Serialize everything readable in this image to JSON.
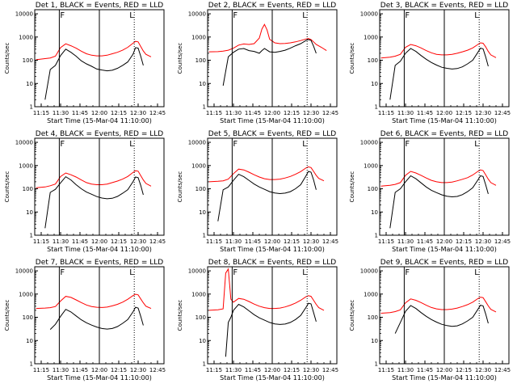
{
  "figure": {
    "background": "#ffffff",
    "series_colors": {
      "events": "#000000",
      "lld": "#ff0000"
    }
  },
  "chart_data": [
    {
      "type": "line",
      "title": "Det 1, BLACK = Events, RED = LLD",
      "xlabel": "Start Time (15-Mar-04 11:10:00)",
      "ylabel": "Counts/sec",
      "x_ticks": [
        "11:15",
        "11:30",
        "11:45",
        "12:00",
        "12:15",
        "12:30",
        "12:45"
      ],
      "y_ticks": [
        "1",
        "10",
        "100",
        "1000",
        "10000"
      ],
      "ylim": [
        1,
        15000
      ],
      "y_scale": "log",
      "grid": false,
      "x": [
        "11:11",
        "11:18",
        "11:22",
        "11:26",
        "11:30",
        "11:34",
        "11:38",
        "11:42",
        "11:46",
        "11:50",
        "11:54",
        "11:58",
        "12:02",
        "12:06",
        "12:10",
        "12:14",
        "12:18",
        "12:22",
        "12:26",
        "12:28",
        "12:30",
        "12:32",
        "12:34",
        "12:36",
        "12:40"
      ],
      "series": [
        {
          "values": [
            105,
            118,
            125,
            150,
            350,
            510,
            420,
            330,
            245,
            190,
            165,
            155,
            155,
            165,
            190,
            220,
            270,
            360,
            540,
            650,
            620,
            390,
            250,
            180,
            140
          ]
        },
        {
          "values": [
            null,
            2,
            40,
            60,
            160,
            300,
            220,
            150,
            95,
            70,
            55,
            42,
            38,
            35,
            37,
            45,
            60,
            85,
            180,
            350,
            330,
            150,
            60,
            null,
            null
          ]
        }
      ],
      "markers": {
        "solid": [
          "11:29",
          "12:00"
        ],
        "dotted": [
          "12:27"
        ],
        "labels": [
          "F",
          "L"
        ]
      }
    },
    {
      "type": "line",
      "title": "Det 2, BLACK = Events, RED = LLD",
      "xlabel": "Start Time (15-Mar-04 11:10:00)",
      "ylabel": "Counts/sec",
      "x_ticks": [
        "11:15",
        "11:30",
        "11:45",
        "12:00",
        "12:15",
        "12:30",
        "12:45"
      ],
      "y_ticks": [
        "1",
        "10",
        "100",
        "1000",
        "10000"
      ],
      "ylim": [
        1,
        15000
      ],
      "y_scale": "log",
      "grid": false,
      "x": [
        "11:11",
        "11:18",
        "11:22",
        "11:26",
        "11:30",
        "11:34",
        "11:38",
        "11:42",
        "11:46",
        "11:50",
        "11:52",
        "11:54",
        "11:56",
        "11:58",
        "12:02",
        "12:06",
        "12:10",
        "12:14",
        "12:18",
        "12:22",
        "12:26",
        "12:28",
        "12:30",
        "12:32",
        "12:34",
        "12:38",
        "12:42"
      ],
      "series": [
        {
          "values": [
            230,
            235,
            245,
            270,
            330,
            450,
            500,
            480,
            520,
            900,
            2200,
            3500,
            2000,
            800,
            560,
            520,
            530,
            560,
            620,
            700,
            820,
            860,
            780,
            620,
            480,
            360,
            260
          ]
        },
        {
          "values": [
            null,
            null,
            8,
            140,
            220,
            300,
            320,
            260,
            240,
            200,
            260,
            320,
            270,
            230,
            220,
            240,
            270,
            330,
            420,
            520,
            700,
            780,
            720,
            400,
            200,
            null,
            null
          ]
        }
      ],
      "markers": {
        "solid": [
          "11:29",
          "12:00"
        ],
        "dotted": [
          "12:27"
        ],
        "labels": [
          "F",
          "L"
        ]
      }
    },
    {
      "type": "line",
      "title": "Det 3, BLACK = Events, RED = LLD",
      "xlabel": "Start Time (15-Mar-04 11:10:00)",
      "ylabel": "Counts/sec",
      "x_ticks": [
        "11:15",
        "11:30",
        "11:45",
        "12:00",
        "12:15",
        "12:30",
        "12:45"
      ],
      "y_ticks": [
        "1",
        "10",
        "100",
        "1000",
        "10000"
      ],
      "ylim": [
        1,
        15000
      ],
      "y_scale": "log",
      "grid": false,
      "x": [
        "11:11",
        "11:18",
        "11:22",
        "11:26",
        "11:30",
        "11:34",
        "11:38",
        "11:42",
        "11:46",
        "11:50",
        "11:54",
        "11:58",
        "12:02",
        "12:06",
        "12:10",
        "12:14",
        "12:18",
        "12:22",
        "12:26",
        "12:28",
        "12:30",
        "12:32",
        "12:34",
        "12:36",
        "12:40"
      ],
      "series": [
        {
          "values": [
            125,
            135,
            150,
            180,
            360,
            480,
            420,
            340,
            260,
            210,
            180,
            170,
            170,
            180,
            200,
            230,
            270,
            340,
            480,
            560,
            540,
            380,
            240,
            170,
            130
          ]
        },
        {
          "values": [
            null,
            2,
            60,
            90,
            200,
            320,
            240,
            160,
            110,
            80,
            62,
            50,
            45,
            42,
            44,
            52,
            70,
            100,
            220,
            330,
            310,
            140,
            55,
            null,
            null
          ]
        }
      ],
      "markers": {
        "solid": [
          "11:29",
          "12:00"
        ],
        "dotted": [
          "12:27"
        ],
        "labels": [
          "F",
          "L"
        ]
      }
    },
    {
      "type": "line",
      "title": "Det 4, BLACK = Events, RED = LLD",
      "xlabel": "Start Time (15-Mar-04 11:10:00)",
      "ylabel": "Counts/sec",
      "x_ticks": [
        "11:15",
        "11:30",
        "11:45",
        "12:00",
        "12:15",
        "12:30",
        "12:45"
      ],
      "y_ticks": [
        "1",
        "10",
        "100",
        "1000",
        "10000"
      ],
      "ylim": [
        1,
        15000
      ],
      "y_scale": "log",
      "grid": false,
      "x": [
        "11:11",
        "11:18",
        "11:22",
        "11:26",
        "11:30",
        "11:34",
        "11:38",
        "11:42",
        "11:46",
        "11:50",
        "11:54",
        "11:58",
        "12:02",
        "12:06",
        "12:10",
        "12:14",
        "12:18",
        "12:22",
        "12:26",
        "12:28",
        "12:30",
        "12:32",
        "12:34",
        "12:36",
        "12:40"
      ],
      "series": [
        {
          "values": [
            110,
            120,
            135,
            160,
            340,
            480,
            400,
            320,
            240,
            185,
            160,
            150,
            150,
            160,
            185,
            215,
            260,
            340,
            500,
            600,
            570,
            370,
            240,
            170,
            130
          ]
        },
        {
          "values": [
            null,
            2,
            70,
            95,
            180,
            330,
            240,
            150,
            100,
            72,
            58,
            46,
            40,
            37,
            39,
            47,
            64,
            92,
            200,
            320,
            300,
            140,
            55,
            null,
            null
          ]
        }
      ],
      "markers": {
        "solid": [
          "11:29",
          "12:00"
        ],
        "dotted": [
          "12:27"
        ],
        "labels": [
          "F",
          "L"
        ]
      }
    },
    {
      "type": "line",
      "title": "Det 5, BLACK = Events, RED = LLD",
      "xlabel": "Start Time (15-Mar-04 11:10:00)",
      "ylabel": "Counts/sec",
      "x_ticks": [
        "11:15",
        "11:30",
        "11:45",
        "12:00",
        "12:15",
        "12:30",
        "12:45"
      ],
      "y_ticks": [
        "1",
        "10",
        "100",
        "1000",
        "10000"
      ],
      "ylim": [
        1,
        15000
      ],
      "y_scale": "log",
      "grid": false,
      "x": [
        "11:11",
        "11:18",
        "11:22",
        "11:26",
        "11:30",
        "11:34",
        "11:38",
        "11:42",
        "11:46",
        "11:50",
        "11:54",
        "11:58",
        "12:02",
        "12:06",
        "12:10",
        "12:14",
        "12:18",
        "12:22",
        "12:26",
        "12:28",
        "12:30",
        "12:32",
        "12:34",
        "12:36",
        "12:40"
      ],
      "series": [
        {
          "values": [
            200,
            210,
            220,
            260,
            450,
            700,
            650,
            520,
            400,
            320,
            270,
            250,
            250,
            260,
            290,
            340,
            420,
            550,
            780,
            880,
            820,
            560,
            380,
            280,
            220
          ]
        },
        {
          "values": [
            null,
            4,
            90,
            120,
            230,
            420,
            330,
            230,
            160,
            120,
            95,
            75,
            66,
            62,
            65,
            75,
            100,
            150,
            350,
            560,
            520,
            240,
            90,
            null,
            null
          ]
        }
      ],
      "markers": {
        "solid": [
          "11:29",
          "12:00"
        ],
        "dotted": [
          "12:27"
        ],
        "labels": [
          "F",
          "L"
        ]
      }
    },
    {
      "type": "line",
      "title": "Det 6, BLACK = Events, RED = LLD",
      "xlabel": "Start Time (15-Mar-04 11:10:00)",
      "ylabel": "Counts/sec",
      "x_ticks": [
        "11:15",
        "11:30",
        "11:45",
        "12:00",
        "12:15",
        "12:30",
        "12:45"
      ],
      "y_ticks": [
        "1",
        "10",
        "100",
        "1000",
        "10000"
      ],
      "ylim": [
        1,
        15000
      ],
      "y_scale": "log",
      "grid": false,
      "x": [
        "11:11",
        "11:18",
        "11:22",
        "11:26",
        "11:30",
        "11:34",
        "11:38",
        "11:42",
        "11:46",
        "11:50",
        "11:54",
        "11:58",
        "12:02",
        "12:06",
        "12:10",
        "12:14",
        "12:18",
        "12:22",
        "12:26",
        "12:28",
        "12:30",
        "12:32",
        "12:34",
        "12:36",
        "12:40"
      ],
      "series": [
        {
          "values": [
            130,
            140,
            155,
            185,
            380,
            560,
            480,
            380,
            290,
            230,
            200,
            185,
            185,
            195,
            220,
            255,
            300,
            390,
            560,
            650,
            610,
            400,
            260,
            185,
            140
          ]
        },
        {
          "values": [
            null,
            2,
            70,
            100,
            200,
            360,
            270,
            180,
            120,
            86,
            68,
            55,
            48,
            45,
            47,
            56,
            75,
            110,
            240,
            360,
            340,
            150,
            60,
            null,
            null
          ]
        }
      ],
      "markers": {
        "solid": [
          "11:29",
          "12:00"
        ],
        "dotted": [
          "12:27"
        ],
        "labels": [
          "F",
          "L"
        ]
      }
    },
    {
      "type": "line",
      "title": "Det 7, BLACK = Events, RED = LLD",
      "xlabel": "Start Time (15-Mar-04 11:10:00)",
      "ylabel": "Counts/sec",
      "x_ticks": [
        "11:15",
        "11:30",
        "11:45",
        "12:00",
        "12:15",
        "12:30",
        "12:45"
      ],
      "y_ticks": [
        "1",
        "10",
        "100",
        "1000",
        "10000"
      ],
      "ylim": [
        1,
        15000
      ],
      "y_scale": "log",
      "grid": false,
      "x": [
        "11:11",
        "11:18",
        "11:22",
        "11:26",
        "11:30",
        "11:34",
        "11:38",
        "11:42",
        "11:46",
        "11:50",
        "11:54",
        "11:58",
        "12:02",
        "12:06",
        "12:10",
        "12:14",
        "12:18",
        "12:22",
        "12:26",
        "12:28",
        "12:30",
        "12:32",
        "12:34",
        "12:36",
        "12:40"
      ],
      "series": [
        {
          "values": [
            240,
            250,
            260,
            290,
            500,
            800,
            720,
            560,
            430,
            340,
            290,
            270,
            265,
            275,
            310,
            360,
            450,
            600,
            860,
            980,
            920,
            620,
            420,
            300,
            240
          ]
        },
        {
          "values": [
            null,
            null,
            30,
            50,
            110,
            220,
            170,
            115,
            78,
            58,
            46,
            38,
            33,
            31,
            33,
            40,
            55,
            80,
            170,
            270,
            250,
            110,
            45,
            null,
            null
          ]
        }
      ],
      "markers": {
        "solid": [
          "11:29",
          "12:00"
        ],
        "dotted": [
          "12:27"
        ],
        "labels": [
          "F",
          "L"
        ]
      }
    },
    {
      "type": "line",
      "title": "Det 8, BLACK = Events, RED = LLD",
      "xlabel": "Start Time (15-Mar-04 11:10:00)",
      "ylabel": "Counts/sec",
      "x_ticks": [
        "11:15",
        "11:30",
        "11:45",
        "12:00",
        "12:15",
        "12:30",
        "12:45"
      ],
      "y_ticks": [
        "1",
        "10",
        "100",
        "1000",
        "10000"
      ],
      "ylim": [
        1,
        15000
      ],
      "y_scale": "log",
      "grid": false,
      "x": [
        "11:11",
        "11:18",
        "11:22",
        "11:24",
        "11:26",
        "11:28",
        "11:30",
        "11:34",
        "11:38",
        "11:42",
        "11:46",
        "11:50",
        "11:54",
        "11:58",
        "12:02",
        "12:06",
        "12:10",
        "12:14",
        "12:18",
        "12:22",
        "12:26",
        "12:28",
        "12:30",
        "12:32",
        "12:34",
        "12:36",
        "12:40"
      ],
      "series": [
        {
          "values": [
            200,
            210,
            230,
            8000,
            12000,
            600,
            450,
            650,
            600,
            480,
            370,
            300,
            260,
            240,
            240,
            250,
            280,
            330,
            410,
            540,
            760,
            850,
            800,
            540,
            360,
            260,
            200
          ]
        },
        {
          "values": [
            null,
            null,
            null,
            2,
            60,
            100,
            200,
            360,
            280,
            190,
            130,
            95,
            75,
            60,
            52,
            49,
            51,
            60,
            80,
            120,
            260,
            400,
            380,
            160,
            65,
            null,
            null
          ]
        }
      ],
      "markers": {
        "solid": [
          "11:29",
          "12:00"
        ],
        "dotted": [
          "12:27"
        ],
        "labels": [
          "F",
          "L"
        ]
      }
    },
    {
      "type": "line",
      "title": "Det 9, BLACK = Events, RED = LLD",
      "xlabel": "Start Time (15-Mar-04 11:10:00)",
      "ylabel": "Counts/sec",
      "x_ticks": [
        "11:15",
        "11:30",
        "11:45",
        "12:00",
        "12:15",
        "12:30",
        "12:45"
      ],
      "y_ticks": [
        "1",
        "10",
        "100",
        "1000",
        "10000"
      ],
      "ylim": [
        1,
        15000
      ],
      "y_scale": "log",
      "grid": false,
      "x": [
        "11:11",
        "11:18",
        "11:22",
        "11:26",
        "11:30",
        "11:34",
        "11:38",
        "11:42",
        "11:46",
        "11:50",
        "11:54",
        "11:58",
        "12:02",
        "12:06",
        "12:10",
        "12:14",
        "12:18",
        "12:22",
        "12:26",
        "12:28",
        "12:30",
        "12:32",
        "12:34",
        "12:36",
        "12:40"
      ],
      "series": [
        {
          "values": [
            150,
            160,
            175,
            210,
            420,
            620,
            540,
            430,
            330,
            265,
            230,
            215,
            215,
            225,
            250,
            290,
            350,
            450,
            640,
            740,
            700,
            470,
            310,
            220,
            170
          ]
        },
        {
          "values": [
            null,
            null,
            20,
            60,
            180,
            320,
            240,
            160,
            110,
            80,
            62,
            50,
            44,
            41,
            43,
            52,
            70,
            100,
            220,
            330,
            310,
            140,
            55,
            null,
            null
          ]
        }
      ],
      "markers": {
        "solid": [
          "11:29",
          "12:00"
        ],
        "dotted": [
          "12:27"
        ],
        "labels": [
          "F",
          "L"
        ]
      }
    }
  ]
}
